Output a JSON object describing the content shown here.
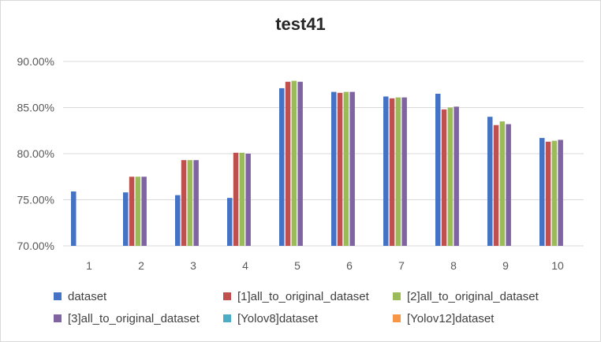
{
  "chart_data": {
    "type": "bar",
    "title": "test41",
    "xlabel": "",
    "ylabel": "",
    "categories": [
      "1",
      "2",
      "3",
      "4",
      "5",
      "6",
      "7",
      "8",
      "9",
      "10"
    ],
    "ylim": [
      70,
      90
    ],
    "yticks": [
      "70.00%",
      "75.00%",
      "80.00%",
      "85.00%",
      "90.00%"
    ],
    "grid": true,
    "legend_position": "bottom",
    "series": [
      {
        "name": "dataset",
        "color": "#4472c4",
        "values": [
          75.9,
          75.8,
          75.5,
          75.2,
          87.1,
          86.7,
          86.2,
          86.5,
          84.0,
          81.7
        ]
      },
      {
        "name": "[1]all_to_original_dataset",
        "color": "#c0504d",
        "values": [
          null,
          77.5,
          79.3,
          80.1,
          87.8,
          86.6,
          86.0,
          84.8,
          83.1,
          81.3
        ]
      },
      {
        "name": "[2]all_to_original_dataset",
        "color": "#9bbb59",
        "values": [
          null,
          77.5,
          79.3,
          80.1,
          87.9,
          86.7,
          86.1,
          85.0,
          83.5,
          81.4
        ]
      },
      {
        "name": "[3]all_to_original_dataset",
        "color": "#8064a2",
        "values": [
          null,
          77.5,
          79.3,
          80.0,
          87.8,
          86.7,
          86.1,
          85.1,
          83.2,
          81.5
        ]
      },
      {
        "name": "[Yolov8]dataset",
        "color": "#4bacc6",
        "values": [
          null,
          null,
          null,
          null,
          null,
          null,
          null,
          null,
          null,
          null
        ]
      },
      {
        "name": "[Yolov12]dataset",
        "color": "#f79646",
        "values": [
          null,
          null,
          null,
          null,
          null,
          null,
          null,
          null,
          null,
          null
        ]
      }
    ]
  }
}
